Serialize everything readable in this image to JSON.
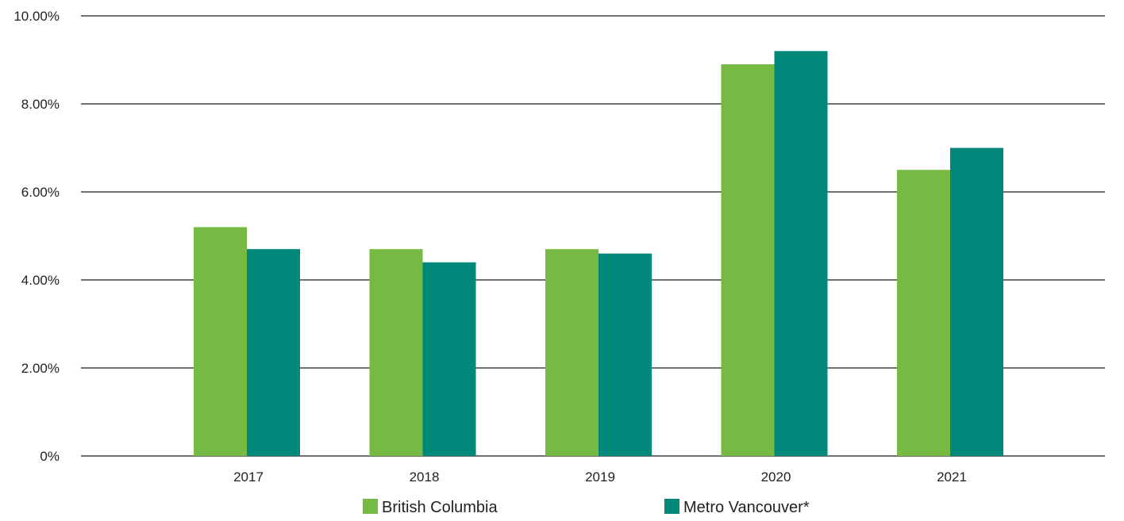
{
  "chart_data": {
    "type": "bar",
    "title": "",
    "xlabel": "",
    "ylabel": "",
    "categories": [
      "2017",
      "2018",
      "2019",
      "2020",
      "2021"
    ],
    "series": [
      {
        "name": "British Columbia",
        "color": "#76b943",
        "values": [
          5.2,
          4.7,
          4.7,
          8.9,
          6.5
        ]
      },
      {
        "name": "Metro Vancouver*",
        "color": "#00897b",
        "values": [
          4.7,
          4.4,
          4.6,
          9.2,
          7.0
        ]
      }
    ],
    "ylim": [
      0,
      10
    ],
    "yticks": [
      0,
      2,
      4,
      6,
      8,
      10
    ],
    "ytick_labels": [
      "0%",
      "2.00%",
      "4.00%",
      "6.00%",
      "8.00%",
      "10.00%"
    ],
    "grid": true,
    "legend_position": "bottom-center"
  }
}
